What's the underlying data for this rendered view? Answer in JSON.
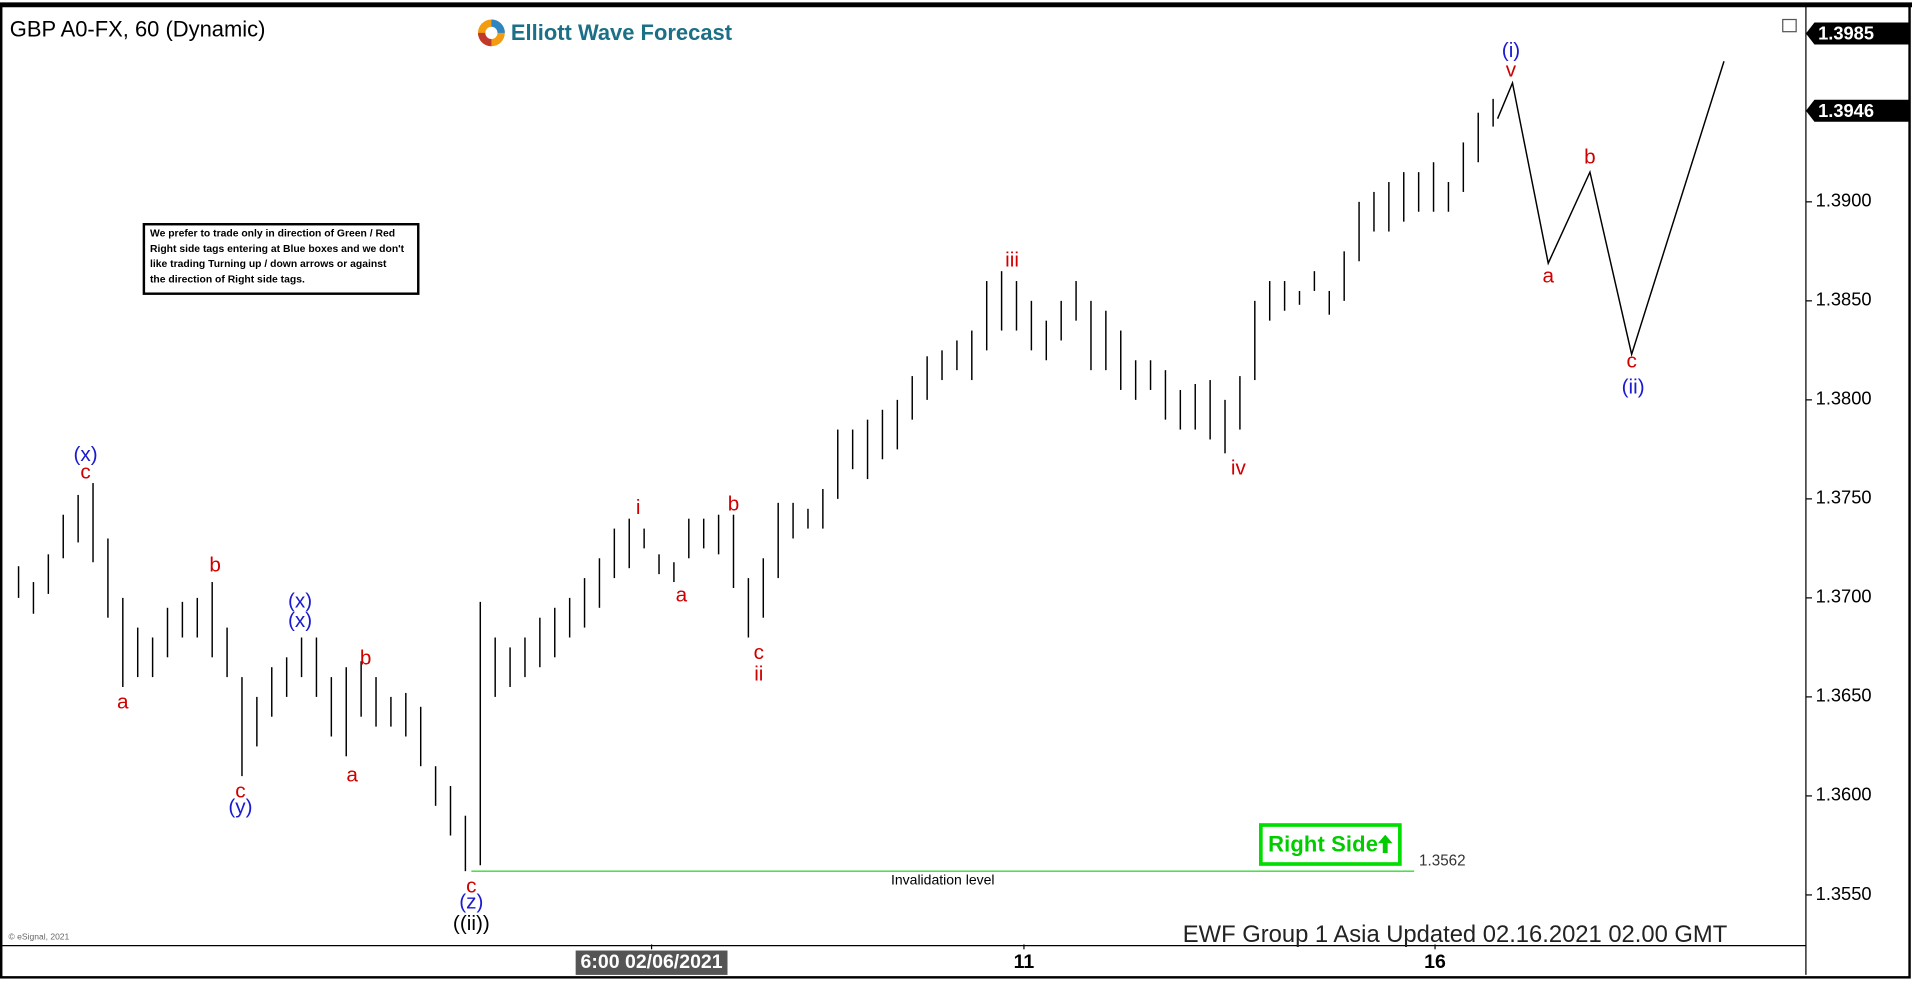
{
  "chart_data": {
    "type": "hl",
    "title": "GBP A0-FX, 60 (Dynamic)",
    "logo": "Elliott Wave Forecast",
    "footer": "EWF Group 1 Asia Updated 02.16.2021 02.00 GMT",
    "copyright": "© eSignal, 2021",
    "note": [
      "We prefer to trade only in direction of Green / Red",
      "Right side tags entering at Blue boxes and we don't",
      "like trading Turning up / down arrows or against",
      "the direction of Right side tags."
    ],
    "right_side": "Right Side",
    "color": "#000000",
    "high": [
      1.3716,
      1.3708,
      1.3722,
      1.3742,
      1.3752,
      1.3758,
      1.373,
      1.37,
      1.3685,
      1.368,
      1.3695,
      1.3698,
      1.37,
      1.3708,
      1.3685,
      1.366,
      1.365,
      1.3665,
      1.367,
      1.368,
      1.368,
      1.366,
      1.3665,
      1.3668,
      1.366,
      1.365,
      1.3652,
      1.3645,
      1.3615,
      1.3605,
      1.359,
      1.3698,
      1.368,
      1.3675,
      1.368,
      1.369,
      1.3695,
      1.37,
      1.371,
      1.372,
      1.3735,
      1.374,
      1.3735,
      1.3722,
      1.3718,
      1.374,
      1.374,
      1.3742,
      1.3742,
      1.371,
      1.372,
      1.3748,
      1.3748,
      1.3745,
      1.3755,
      1.3785,
      1.3785,
      1.379,
      1.3795,
      1.38,
      1.3812,
      1.3822,
      1.3825,
      1.383,
      1.3835,
      1.386,
      1.3865,
      1.386,
      1.385,
      1.384,
      1.385,
      1.386,
      1.385,
      1.3845,
      1.3835,
      1.382,
      1.382,
      1.3815,
      1.3805,
      1.3808,
      1.381,
      1.38,
      1.3812,
      1.385,
      1.386,
      1.386,
      1.3855,
      1.3865,
      1.3855,
      1.3875,
      1.39,
      1.3905,
      1.391,
      1.3915,
      1.3915,
      1.392,
      1.391,
      1.393,
      1.3945,
      1.3952
    ],
    "low": [
      1.37,
      1.3692,
      1.3702,
      1.372,
      1.3728,
      1.3718,
      1.369,
      1.3655,
      1.366,
      1.366,
      1.367,
      1.368,
      1.368,
      1.367,
      1.366,
      1.361,
      1.3625,
      1.364,
      1.365,
      1.366,
      1.365,
      1.363,
      1.362,
      1.364,
      1.3635,
      1.3635,
      1.363,
      1.3615,
      1.3595,
      1.358,
      1.3562,
      1.3565,
      1.365,
      1.3655,
      1.366,
      1.3665,
      1.367,
      1.368,
      1.3685,
      1.3695,
      1.371,
      1.3715,
      1.3725,
      1.3712,
      1.3708,
      1.372,
      1.3725,
      1.3722,
      1.3705,
      1.368,
      1.369,
      1.371,
      1.373,
      1.3735,
      1.3735,
      1.375,
      1.3765,
      1.376,
      1.377,
      1.3775,
      1.379,
      1.38,
      1.381,
      1.3815,
      1.381,
      1.3825,
      1.3835,
      1.3835,
      1.3825,
      1.382,
      1.383,
      1.384,
      1.3815,
      1.3815,
      1.3805,
      1.38,
      1.3805,
      1.379,
      1.3785,
      1.3785,
      1.378,
      1.3773,
      1.3785,
      1.381,
      1.384,
      1.3845,
      1.3848,
      1.3855,
      1.3843,
      1.385,
      1.387,
      1.3885,
      1.3885,
      1.389,
      1.3895,
      1.3895,
      1.3895,
      1.3905,
      1.392,
      1.3938
    ],
    "xlim": [
      -1,
      120
    ],
    "xticks": [
      {
        "value": 42.5,
        "label": "6:00 02/06/2021"
      },
      {
        "value": 67.5,
        "label": "11"
      },
      {
        "value": 95.1,
        "label": "16"
      }
    ],
    "ylim": [
      1.3525,
      1.3997
    ],
    "yticks": [
      {
        "value": 1.355,
        "label": "1.3550"
      },
      {
        "value": 1.36,
        "label": "1.3600"
      },
      {
        "value": 1.365,
        "label": "1.3650"
      },
      {
        "value": 1.37,
        "label": "1.3700"
      },
      {
        "value": 1.375,
        "label": "1.3750"
      },
      {
        "value": 1.38,
        "label": "1.3800"
      },
      {
        "value": 1.385,
        "label": "1.3850"
      },
      {
        "value": 1.39,
        "label": "1.3900"
      }
    ],
    "price_tags": [
      {
        "value": 1.3985,
        "label": "1.3985"
      },
      {
        "value": 1.3946,
        "label": "1.3946"
      }
    ],
    "projection": {
      "color": "#000000",
      "x": [
        99.3,
        100.3,
        102.7,
        105.5,
        108.3,
        114.5
      ],
      "y": [
        1.3942,
        1.396,
        1.3869,
        1.3915,
        1.3823,
        1.3971
      ]
    },
    "invalidation": {
      "value": 1.3562,
      "label": "1.3562",
      "text": "Invalidation level",
      "start": 30.4,
      "end": 93.7,
      "color": "#33dd33"
    },
    "annotations": [
      {
        "text": "(x)",
        "x": 4.5,
        "y": 1.3772,
        "color": "#1a1ad0"
      },
      {
        "text": "c",
        "x": 4.5,
        "y": 1.3763,
        "color": "#d00000"
      },
      {
        "text": "a",
        "x": 7,
        "y": 1.3647,
        "color": "#d00000"
      },
      {
        "text": "b",
        "x": 13.2,
        "y": 1.3716,
        "color": "#d00000"
      },
      {
        "text": "c",
        "x": 14.9,
        "y": 1.3602,
        "color": "#d00000"
      },
      {
        "text": "(y)",
        "x": 14.9,
        "y": 1.3594,
        "color": "#1a1ad0"
      },
      {
        "text": "(x)",
        "x": 18.9,
        "y": 1.3698,
        "color": "#1a1ad0"
      },
      {
        "text": "(x)",
        "x": 18.9,
        "y": 1.3688,
        "color": "#1a1ad0"
      },
      {
        "text": "b",
        "x": 23.3,
        "y": 1.3669,
        "color": "#d00000"
      },
      {
        "text": "a",
        "x": 22.4,
        "y": 1.361,
        "color": "#d00000"
      },
      {
        "text": "c",
        "x": 30.4,
        "y": 1.3554,
        "color": "#d00000"
      },
      {
        "text": "(z)",
        "x": 30.4,
        "y": 1.3546,
        "color": "#1a1ad0"
      },
      {
        "text": "((ii))",
        "x": 30.4,
        "y": 1.3535,
        "color": "#000000"
      },
      {
        "text": "i",
        "x": 41.6,
        "y": 1.3745,
        "color": "#d00000"
      },
      {
        "text": "a",
        "x": 44.5,
        "y": 1.3701,
        "color": "#d00000"
      },
      {
        "text": "b",
        "x": 48,
        "y": 1.3747,
        "color": "#d00000"
      },
      {
        "text": "c",
        "x": 49.7,
        "y": 1.3672,
        "color": "#d00000"
      },
      {
        "text": "ii",
        "x": 49.7,
        "y": 1.3661,
        "color": "#d00000"
      },
      {
        "text": "iii",
        "x": 66.7,
        "y": 1.387,
        "color": "#d00000"
      },
      {
        "text": "iv",
        "x": 81.9,
        "y": 1.3765,
        "color": "#d00000"
      },
      {
        "text": "(i)",
        "x": 100.2,
        "y": 1.3976,
        "color": "#1a1ad0"
      },
      {
        "text": "v",
        "x": 100.2,
        "y": 1.3966,
        "color": "#d00000"
      },
      {
        "text": "a",
        "x": 102.7,
        "y": 1.3862,
        "color": "#d00000"
      },
      {
        "text": "b",
        "x": 105.5,
        "y": 1.3922,
        "color": "#d00000"
      },
      {
        "text": "c",
        "x": 108.3,
        "y": 1.3819,
        "color": "#d00000"
      },
      {
        "text": "(ii)",
        "x": 108.4,
        "y": 1.3806,
        "color": "#1a1ad0"
      }
    ]
  }
}
